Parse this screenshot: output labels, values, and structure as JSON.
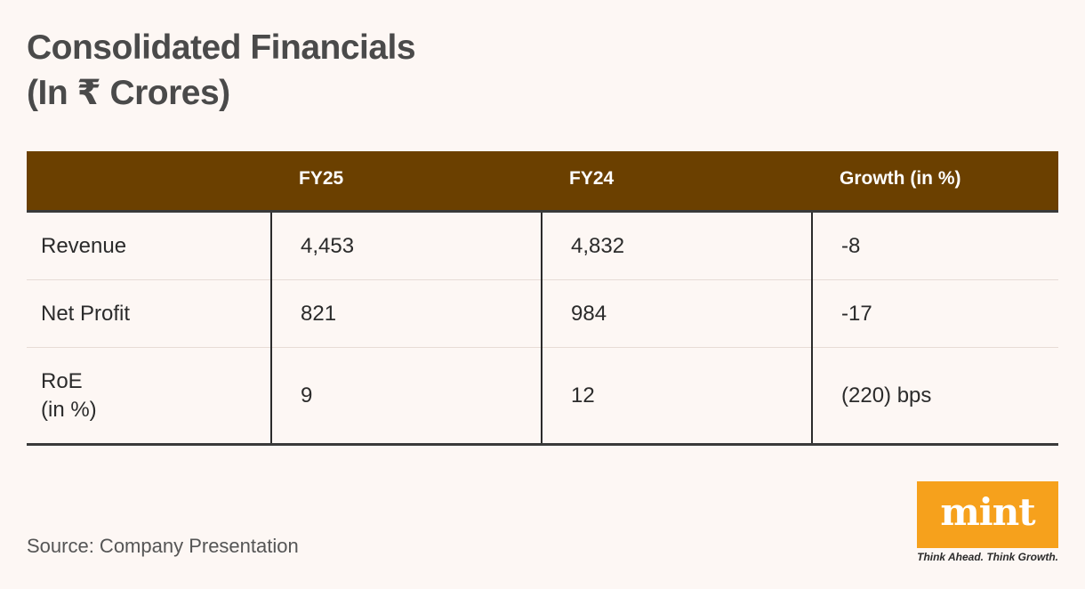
{
  "title": {
    "line1": "Consolidated Financials",
    "line2": "(In ₹ Crores)"
  },
  "chart_data": {
    "type": "table",
    "columns": [
      "",
      "FY25",
      "FY24",
      "Growth (in %)"
    ],
    "rows": [
      {
        "label": "Revenue",
        "fy25": "4,453",
        "fy24": "4,832",
        "growth": "-8"
      },
      {
        "label": "Net Profit",
        "fy25": "821",
        "fy24": "984",
        "growth": "-17"
      },
      {
        "label": "RoE\n(in %)",
        "label_line1": "RoE",
        "label_line2": "(in %)",
        "fy25": "9",
        "fy24": "12",
        "growth": "(220) bps"
      }
    ]
  },
  "source": "Source: Company Presentation",
  "logo": {
    "text": "mint",
    "tagline": "Think Ahead. Think Growth.",
    "color": "#f6a11c"
  },
  "colors": {
    "header_bg": "#6b4000",
    "background": "#fdf7f4"
  }
}
